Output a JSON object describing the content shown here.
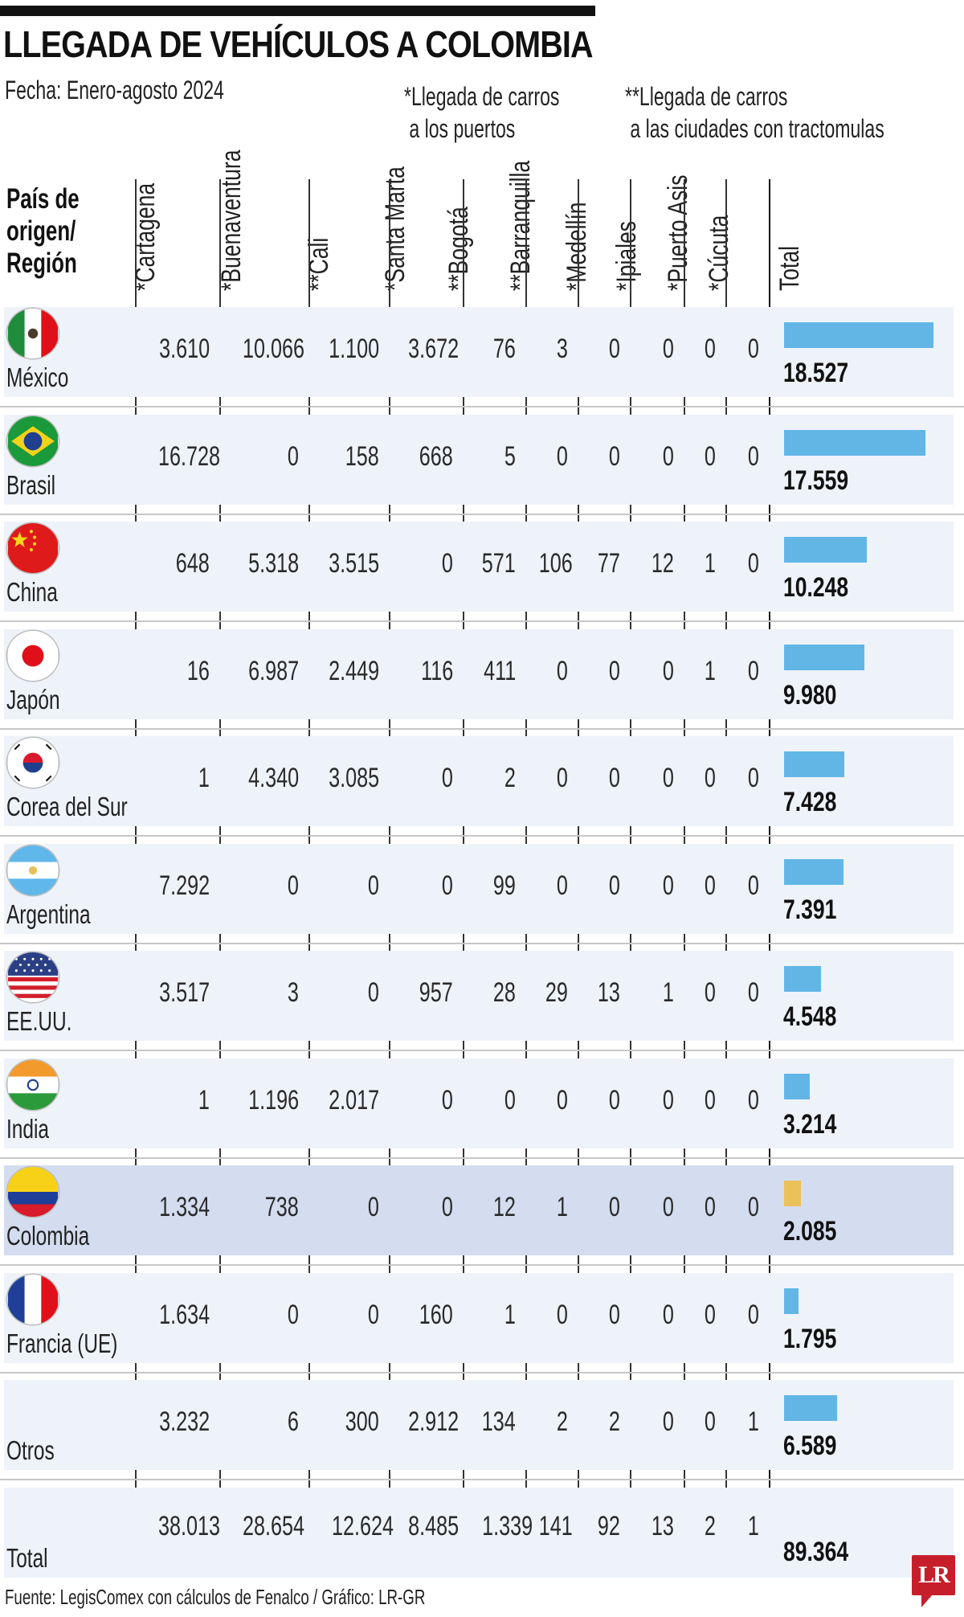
{
  "header": {
    "title": "LLEGADA DE VEHÍCULOS A COLOMBIA",
    "subtitle": "Fecha: Enero-agosto 2024",
    "note_ports": "*Llegada de carros\n a los puertos",
    "note_cities": "**Llegada de carros\n a las ciudades con tractomulas",
    "row_header": "País de\norigen/\nRegión"
  },
  "columns": [
    "*Cartagena",
    "*Buenaventura",
    "**Cali",
    "*Santa Marta",
    "**Bogotá",
    "**Barranquilla",
    "*Medellín",
    "*Ipiales",
    "*Puerto Asis",
    "*Cúcuta",
    "Total"
  ],
  "colors": {
    "band": "#eef2f9",
    "highlight_band": "#d3ddef",
    "bar": "#62b6e6",
    "highlight_bar": "#ebc15a",
    "logo": "#c61f2b"
  },
  "rows": [
    {
      "country": "México",
      "flag": "mexico-flag-icon",
      "values": [
        "3.610",
        "10.066",
        "1.100",
        "3.672",
        "76",
        "3",
        "0",
        "0",
        "0",
        "0"
      ],
      "total": "18.527"
    },
    {
      "country": "Brasil",
      "flag": "brazil-flag-icon",
      "values": [
        "16.728",
        "0",
        "158",
        "668",
        "5",
        "0",
        "0",
        "0",
        "0",
        "0"
      ],
      "total": "17.559"
    },
    {
      "country": "China",
      "flag": "china-flag-icon",
      "values": [
        "648",
        "5.318",
        "3.515",
        "0",
        "571",
        "106",
        "77",
        "12",
        "1",
        "0"
      ],
      "total": "10.248"
    },
    {
      "country": "Japón",
      "flag": "japan-flag-icon",
      "values": [
        "16",
        "6.987",
        "2.449",
        "116",
        "411",
        "0",
        "0",
        "0",
        "1",
        "0"
      ],
      "total": "9.980"
    },
    {
      "country": "Corea del Sur",
      "flag": "south-korea-flag-icon",
      "values": [
        "1",
        "4.340",
        "3.085",
        "0",
        "2",
        "0",
        "0",
        "0",
        "0",
        "0"
      ],
      "total": "7.428"
    },
    {
      "country": "Argentina",
      "flag": "argentina-flag-icon",
      "values": [
        "7.292",
        "0",
        "0",
        "0",
        "99",
        "0",
        "0",
        "0",
        "0",
        "0"
      ],
      "total": "7.391"
    },
    {
      "country": "EE.UU.",
      "flag": "usa-flag-icon",
      "values": [
        "3.517",
        "3",
        "0",
        "957",
        "28",
        "29",
        "13",
        "1",
        "0",
        "0"
      ],
      "total": "4.548"
    },
    {
      "country": "India",
      "flag": "india-flag-icon",
      "values": [
        "1",
        "1.196",
        "2.017",
        "0",
        "0",
        "0",
        "0",
        "0",
        "0",
        "0"
      ],
      "total": "3.214"
    },
    {
      "country": "Colombia",
      "flag": "colombia-flag-icon",
      "values": [
        "1.334",
        "738",
        "0",
        "0",
        "12",
        "1",
        "0",
        "0",
        "0",
        "0"
      ],
      "total": "2.085",
      "highlight": true
    },
    {
      "country": "Francia (UE)",
      "flag": "france-flag-icon",
      "values": [
        "1.634",
        "0",
        "0",
        "160",
        "1",
        "0",
        "0",
        "0",
        "0",
        "0"
      ],
      "total": "1.795"
    },
    {
      "country": "Otros",
      "values": [
        "3.232",
        "6",
        "300",
        "2.912",
        "134",
        "2",
        "2",
        "0",
        "0",
        "1"
      ],
      "total": "6.589"
    }
  ],
  "totals": {
    "label": "Total",
    "values": [
      "38.013",
      "28.654",
      "12.624",
      "8.485",
      "1.339",
      "141",
      "92",
      "13",
      "2",
      "1"
    ],
    "total": "89.364"
  },
  "footer": "Fuente: LegisComex con cálculos de Fenalco / Gráfico: LR-GR",
  "logo": "LR",
  "chart_data": {
    "type": "table",
    "title": "LLEGADA DE VEHÍCULOS A COLOMBIA",
    "subtitle": "Fecha: Enero-agosto 2024",
    "notes": [
      "*Llegada de carros a los puertos",
      "**Llegada de carros a las ciudades con tractomulas"
    ],
    "columns": [
      "País de origen/Región",
      "*Cartagena",
      "*Buenaventura",
      "**Cali",
      "*Santa Marta",
      "**Bogotá",
      "**Barranquilla",
      "*Medellín",
      "*Ipiales",
      "*Puerto Asis",
      "*Cúcuta",
      "Total"
    ],
    "rows": [
      [
        "México",
        3610,
        10066,
        1100,
        3672,
        76,
        3,
        0,
        0,
        0,
        0,
        18527
      ],
      [
        "Brasil",
        16728,
        0,
        158,
        668,
        5,
        0,
        0,
        0,
        0,
        0,
        17559
      ],
      [
        "China",
        648,
        5318,
        3515,
        0,
        571,
        106,
        77,
        12,
        1,
        0,
        10248
      ],
      [
        "Japón",
        16,
        6987,
        2449,
        116,
        411,
        0,
        0,
        0,
        1,
        0,
        9980
      ],
      [
        "Corea del Sur",
        1,
        4340,
        3085,
        0,
        2,
        0,
        0,
        0,
        0,
        0,
        7428
      ],
      [
        "Argentina",
        7292,
        0,
        0,
        0,
        99,
        0,
        0,
        0,
        0,
        0,
        7391
      ],
      [
        "EE.UU.",
        3517,
        3,
        0,
        957,
        28,
        29,
        13,
        1,
        0,
        0,
        4548
      ],
      [
        "India",
        1,
        1196,
        2017,
        0,
        0,
        0,
        0,
        0,
        0,
        0,
        3214
      ],
      [
        "Colombia",
        1334,
        738,
        0,
        0,
        12,
        1,
        0,
        0,
        0,
        0,
        2085
      ],
      [
        "Francia (UE)",
        1634,
        0,
        0,
        160,
        1,
        0,
        0,
        0,
        0,
        0,
        1795
      ],
      [
        "Otros",
        3232,
        6,
        300,
        2912,
        134,
        2,
        2,
        0,
        0,
        1,
        6589
      ],
      [
        "Total",
        38013,
        28654,
        12624,
        8485,
        1339,
        141,
        92,
        13,
        2,
        1,
        89364
      ]
    ],
    "bar_series": {
      "name": "Total",
      "categories": [
        "México",
        "Brasil",
        "China",
        "Japón",
        "Corea del Sur",
        "Argentina",
        "EE.UU.",
        "India",
        "Colombia",
        "Francia (UE)",
        "Otros"
      ],
      "values": [
        18527,
        17559,
        10248,
        9980,
        7428,
        7391,
        4548,
        3214,
        2085,
        1795,
        6589
      ],
      "highlight": "Colombia"
    },
    "source": "Fuente: LegisComex con cálculos de Fenalco / Gráfico: LR-GR"
  }
}
